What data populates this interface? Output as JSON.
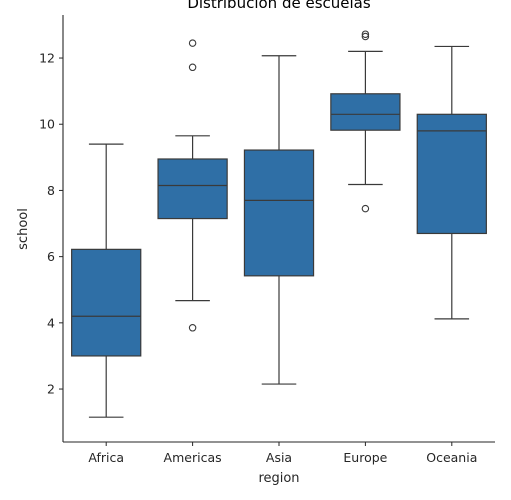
{
  "chart_data": {
    "type": "box",
    "title": "Distribución de escuelas",
    "xlabel": "region",
    "ylabel": "school",
    "categories": [
      "Africa",
      "Americas",
      "Asia",
      "Europe",
      "Oceania"
    ],
    "ylim": [
      0.4,
      13.3
    ],
    "yticks": [
      2,
      4,
      6,
      8,
      10,
      12
    ],
    "grid": false,
    "box_color": "#2f6fa6",
    "line_color": "#3a3a3a",
    "boxes": [
      {
        "category": "Africa",
        "whisker_low": 1.15,
        "q1": 3.0,
        "median": 4.2,
        "q3": 6.22,
        "whisker_high": 9.4,
        "outliers": []
      },
      {
        "category": "Americas",
        "whisker_low": 4.67,
        "q1": 7.15,
        "median": 8.15,
        "q3": 8.95,
        "whisker_high": 9.65,
        "outliers": [
          3.85,
          11.72,
          12.45
        ]
      },
      {
        "category": "Asia",
        "whisker_low": 2.15,
        "q1": 5.42,
        "median": 7.7,
        "q3": 9.22,
        "whisker_high": 12.07,
        "outliers": []
      },
      {
        "category": "Europe",
        "whisker_low": 8.18,
        "q1": 9.82,
        "median": 10.3,
        "q3": 10.92,
        "whisker_high": 12.2,
        "outliers": [
          7.45,
          12.65,
          12.72
        ]
      },
      {
        "category": "Oceania",
        "whisker_low": 4.12,
        "q1": 6.7,
        "median": 9.8,
        "q3": 10.3,
        "whisker_high": 12.35,
        "outliers": []
      }
    ]
  }
}
